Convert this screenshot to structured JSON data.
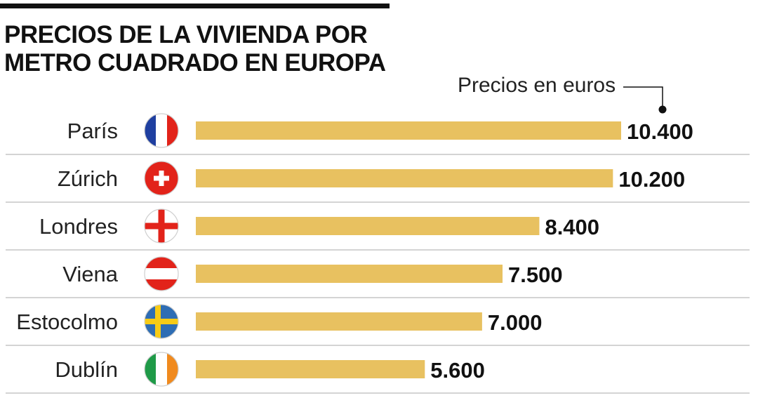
{
  "title": "PRECIOS DE LA VIVIENDA POR\nMETRO CUADRADO EN EUROPA",
  "unit_label": "Precios en euros",
  "colors": {
    "bar": "#e8c160",
    "rule": "#111111",
    "separator": "#bbbbbb",
    "label": "#222222",
    "value": "#111111"
  },
  "flags": [
    "france-flag",
    "switzerland-flag",
    "england-flag",
    "austria-flag",
    "sweden-flag",
    "ireland-flag"
  ],
  "chart_data": {
    "type": "bar",
    "orientation": "horizontal",
    "title": "PRECIOS DE LA VIVIENDA POR METRO CUADRADO EN EUROPA",
    "xlabel": "Precios en euros",
    "ylabel": "",
    "categories": [
      "París",
      "Zúrich",
      "Londres",
      "Viena",
      "Estocolmo",
      "Dublín"
    ],
    "values": [
      10400,
      10200,
      8400,
      7500,
      7000,
      5600
    ],
    "value_labels": [
      "10.400",
      "10.200",
      "8.400",
      "7.500",
      "7.000",
      "5.600"
    ],
    "xlim": [
      0,
      10400
    ],
    "grid": false,
    "legend": "none"
  }
}
